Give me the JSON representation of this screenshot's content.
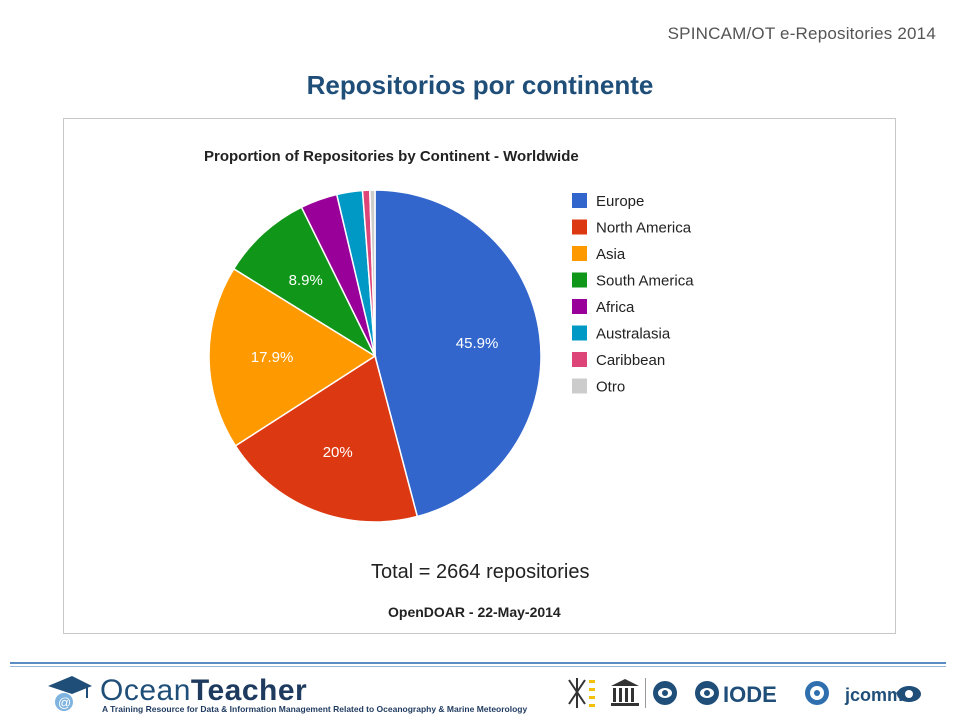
{
  "header": {
    "top_right": "SPINCAM/OT e-Repositories 2014",
    "title": "Repositorios por continente"
  },
  "chart_data": {
    "type": "pie",
    "title": "Proportion of Repositories by Continent - Worldwide",
    "legend_position": "right",
    "slices": [
      {
        "name": "Europe",
        "value": 45.9,
        "label": "45.9%",
        "color": "#3366cc"
      },
      {
        "name": "North America",
        "value": 20.0,
        "label": "20%",
        "color": "#dc3912"
      },
      {
        "name": "Asia",
        "value": 17.9,
        "label": "17.9%",
        "color": "#ff9900"
      },
      {
        "name": "South America",
        "value": 8.9,
        "label": "8.9%",
        "color": "#109618"
      },
      {
        "name": "Africa",
        "value": 3.6,
        "label": "",
        "color": "#990099"
      },
      {
        "name": "Australasia",
        "value": 2.5,
        "label": "",
        "color": "#0099c6"
      },
      {
        "name": "Caribbean",
        "value": 0.7,
        "label": "",
        "color": "#dd4477"
      },
      {
        "name": "Otro",
        "value": 0.5,
        "label": "",
        "color": "#cccccc"
      }
    ],
    "total_text": "Total = 2664 repositories",
    "source_text": "OpenDOAR - 22-May-2014"
  },
  "footer": {
    "brand_ocean": "Ocean",
    "brand_teacher": "Teacher",
    "tagline": "A Training Resource for Data & Information Management Related to Oceanography & Marine Meteorology",
    "partner_iode": "IODE",
    "partner_jcomm": "jcomm"
  }
}
